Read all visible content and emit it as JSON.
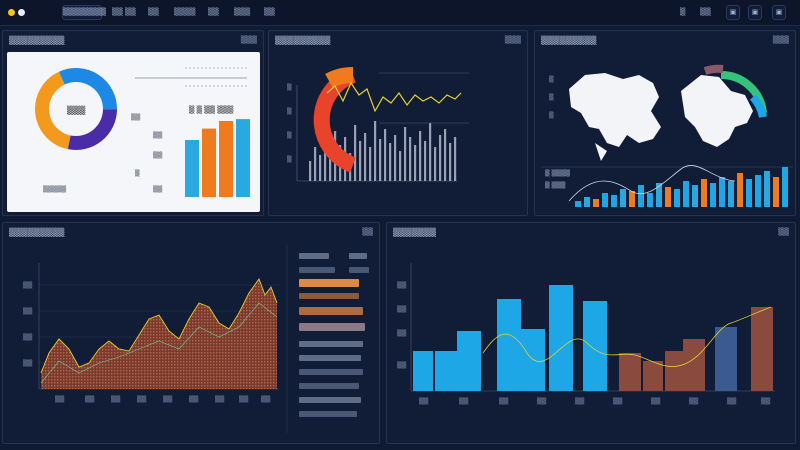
{
  "topbar": {
    "nav": [
      "▒▒▒▒▒▒▒▒",
      "▒▒ ▒▒",
      "▒▒",
      "▒▒▒▒",
      "▒▒",
      "▒▒▒",
      "▒▒"
    ],
    "right_items": [
      "▒",
      "▒▒"
    ],
    "buttons": [
      "▣",
      "▣",
      "▣"
    ]
  },
  "panels": {
    "top_left": {
      "title": "▒▒▒▒▒▒▒▒▒",
      "corner": "▒▒▒"
    },
    "top_center": {
      "title": "▒▒▒▒▒▒▒▒▒",
      "corner": "▒▒▒"
    },
    "top_right": {
      "title": "▒▒▒▒▒▒▒▒▒",
      "corner": "▒▒▒"
    },
    "bottom_left": {
      "title": "▒▒▒▒▒▒▒▒▒",
      "corner": "▒▒"
    },
    "bottom_right": {
      "title": "▒▒▒▒▒▒▒",
      "corner": "▒▒"
    }
  },
  "donut": {
    "center_label": "▒▒▒",
    "footer": "▒▒▒▒▒",
    "segments": [
      {
        "color": "#f39a1e",
        "value": 40
      },
      {
        "color": "#1e88e5",
        "value": 32
      },
      {
        "color": "#4b2ca8",
        "value": 28
      }
    ]
  },
  "bars_small": {
    "colors": [
      "#2aa9e0",
      "#f07a1e",
      "#f07a1e",
      "#2aa9e0"
    ],
    "values": [
      60,
      72,
      80,
      82
    ]
  },
  "colors": {
    "accent_blue": "#1ea7e6",
    "accent_orange": "#f07a1e",
    "accent_red": "#e8442c",
    "accent_yellow": "#e3d030",
    "panel_bg": "#111c36"
  }
}
